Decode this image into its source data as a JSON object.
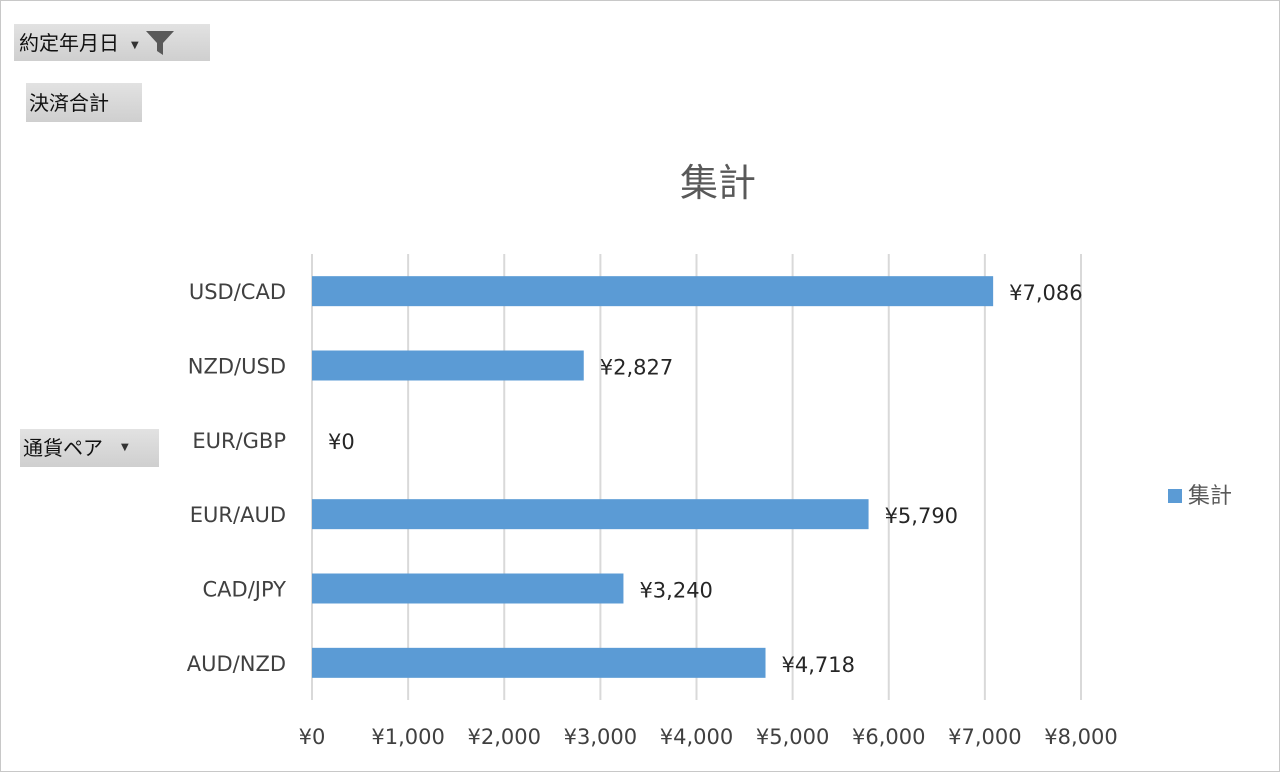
{
  "field_buttons": {
    "date": {
      "label": "約定年月日",
      "icon": "filter-icon"
    },
    "sum": {
      "label": "決済合計"
    },
    "pair": {
      "label": "通貨ペア"
    }
  },
  "colors": {
    "bar": "#5b9bd5",
    "grid": "#d9d9d9"
  },
  "chart_data": {
    "type": "bar",
    "orientation": "horizontal",
    "title": "集計",
    "categories": [
      "USD/CAD",
      "NZD/USD",
      "EUR/GBP",
      "EUR/AUD",
      "CAD/JPY",
      "AUD/NZD"
    ],
    "series": [
      {
        "name": "集計",
        "values": [
          7086,
          2827,
          0,
          5790,
          3240,
          4718
        ]
      }
    ],
    "data_labels": [
      "¥7,086",
      "¥2,827",
      "¥0",
      "¥5,790",
      "¥3,240",
      "¥4,718"
    ],
    "xlim": [
      0,
      8000
    ],
    "xticks": [
      0,
      1000,
      2000,
      3000,
      4000,
      5000,
      6000,
      7000,
      8000
    ],
    "xtick_labels": [
      "¥0",
      "¥1,000",
      "¥2,000",
      "¥3,000",
      "¥4,000",
      "¥5,000",
      "¥6,000",
      "¥7,000",
      "¥8,000"
    ],
    "grid": true,
    "legend_position": "right"
  }
}
